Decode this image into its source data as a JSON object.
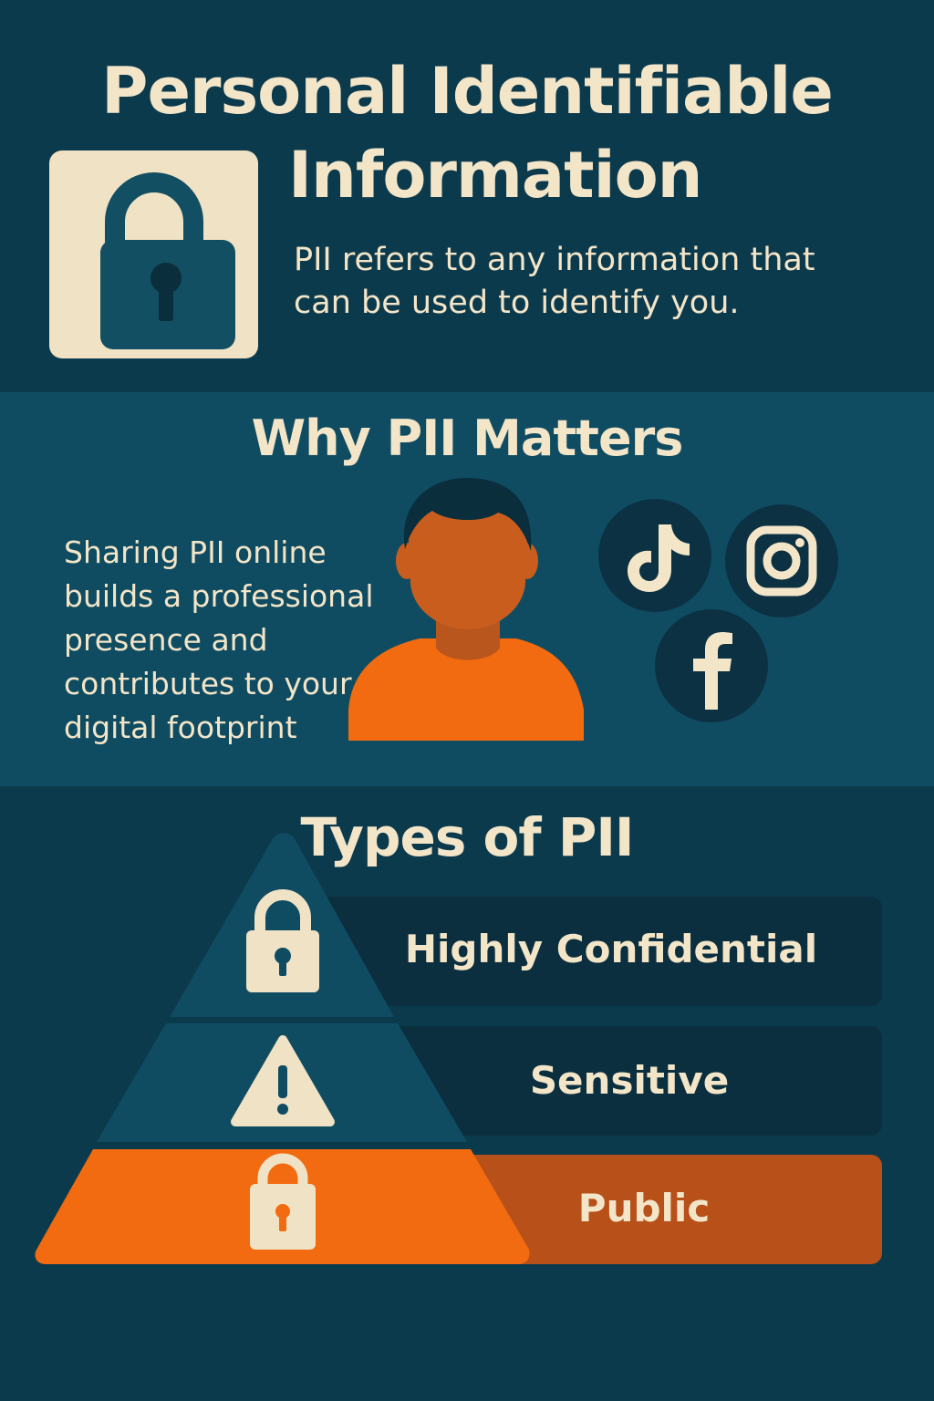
{
  "header": {
    "title_line1": "Personal Identifiable",
    "title_line2": "Information",
    "intro": "PII refers to any information that can be used to identify you.",
    "icon": "padlock-icon"
  },
  "why": {
    "heading": "Why PII Matters",
    "text": "Sharing PII online builds a professional presence and contributes to your digital footprint",
    "illustration": "person-illustration",
    "social_icons": [
      "tiktok-icon",
      "instagram-icon",
      "facebook-icon"
    ]
  },
  "types": {
    "heading": "Types of PII",
    "tiers": [
      {
        "label": "Highly Confidential",
        "icon": "padlock-icon"
      },
      {
        "label": "Sensitive",
        "icon": "warning-icon"
      },
      {
        "label": "Public",
        "icon": "padlock-icon"
      }
    ]
  },
  "colors": {
    "background_dark": "#0c3a4d",
    "background_mid": "#0f4c62",
    "cream": "#f3e5c8",
    "orange": "#f26b10",
    "bar_dark": "#0b2f3f",
    "bar_orange": "#b8501a"
  }
}
